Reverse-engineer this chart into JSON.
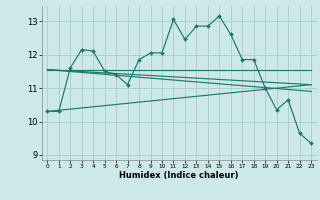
{
  "xlabel": "Humidex (Indice chaleur)",
  "bg_color": "#cde8e8",
  "grid_color": "#b0d0d0",
  "line_color": "#1a7a6e",
  "xlim": [
    -0.5,
    23.5
  ],
  "ylim": [
    8.85,
    13.45
  ],
  "yticks": [
    9,
    10,
    11,
    12,
    13
  ],
  "xticks": [
    0,
    1,
    2,
    3,
    4,
    5,
    6,
    7,
    8,
    9,
    10,
    11,
    12,
    13,
    14,
    15,
    16,
    17,
    18,
    19,
    20,
    21,
    22,
    23
  ],
  "curve1_x": [
    0,
    1,
    2,
    3,
    4,
    5,
    6,
    7,
    8,
    9,
    10,
    11,
    12,
    13,
    14,
    15,
    16,
    17,
    18,
    19,
    20,
    21,
    22,
    23
  ],
  "curve1_y": [
    10.3,
    10.3,
    11.6,
    12.15,
    12.1,
    11.5,
    11.4,
    11.1,
    11.85,
    12.05,
    12.05,
    13.05,
    12.45,
    12.85,
    12.85,
    13.15,
    12.6,
    11.85,
    11.85,
    11.0,
    10.35,
    10.65,
    9.65,
    9.35
  ],
  "line2_x": [
    0,
    23
  ],
  "line2_y": [
    11.55,
    11.55
  ],
  "line3_x": [
    0,
    23
  ],
  "line3_y": [
    11.55,
    11.1
  ],
  "line4_x": [
    0,
    23
  ],
  "line4_y": [
    11.55,
    10.9
  ],
  "line5_x": [
    0,
    23
  ],
  "line5_y": [
    10.3,
    11.1
  ]
}
